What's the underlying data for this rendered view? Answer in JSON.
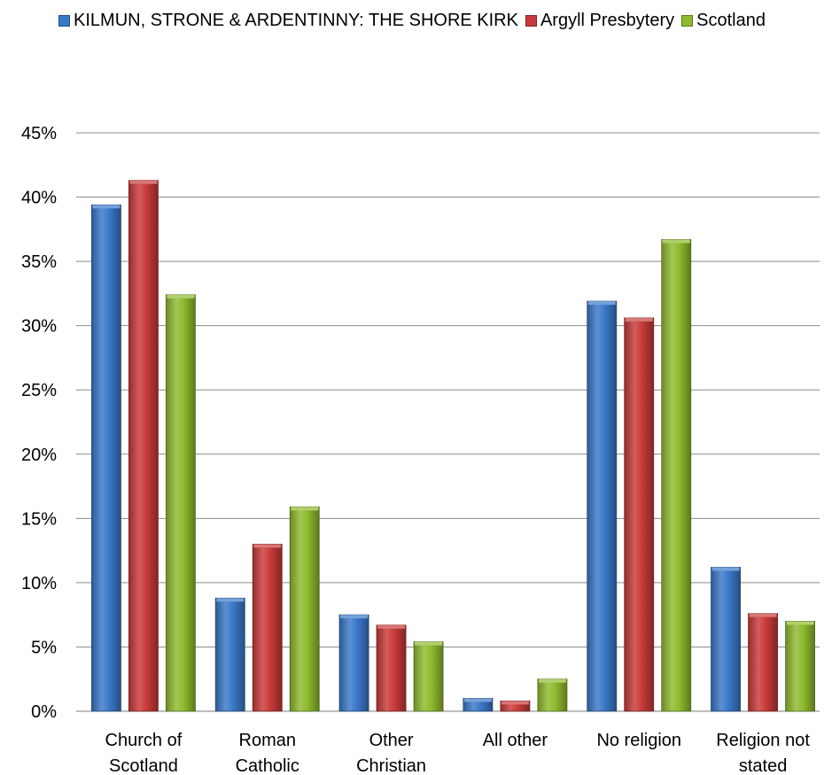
{
  "chart_data": {
    "type": "bar",
    "title": "",
    "xlabel": "",
    "ylabel": "",
    "ylim": [
      0,
      45
    ],
    "y_ticks": [
      "0%",
      "5%",
      "10%",
      "15%",
      "20%",
      "25%",
      "30%",
      "35%",
      "40%",
      "45%"
    ],
    "y_tick_values": [
      0,
      5,
      10,
      15,
      20,
      25,
      30,
      35,
      40,
      45
    ],
    "grid": true,
    "legend_position": "top",
    "categories": [
      [
        "Church of",
        "Scotland"
      ],
      [
        "Roman",
        "Catholic"
      ],
      [
        "Other",
        "Christian"
      ],
      [
        "All other"
      ],
      [
        "No religion"
      ],
      [
        "Religion not",
        "stated"
      ]
    ],
    "series": [
      {
        "name": "KILMUN, STRONE & ARDENTINNY: THE SHORE KIRK",
        "color": "#3a78c9",
        "values": [
          39.4,
          8.8,
          7.5,
          1.0,
          31.9,
          11.2
        ]
      },
      {
        "name": "Argyll Presbytery",
        "color": "#c93a3a",
        "values": [
          41.3,
          13.0,
          6.7,
          0.8,
          30.6,
          7.6
        ]
      },
      {
        "name": "Scotland",
        "color": "#8fbb2e",
        "values": [
          32.4,
          15.9,
          5.4,
          2.5,
          36.7,
          7.0
        ]
      }
    ]
  }
}
